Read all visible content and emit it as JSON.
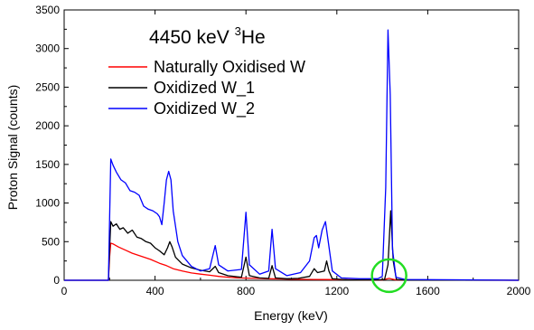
{
  "chart_data": {
    "type": "line",
    "title_main": "4450 keV ",
    "title_sup": "3",
    "title_tail": "He",
    "xlabel": "Energy (keV)",
    "ylabel": "Proton Signal (counts)",
    "xlim": [
      0,
      2000
    ],
    "ylim": [
      0,
      3500
    ],
    "x_ticks": [
      0,
      400,
      800,
      1200,
      1600,
      2000
    ],
    "y_ticks": [
      0,
      500,
      1000,
      1500,
      2000,
      2500,
      3000,
      3500
    ],
    "grid": false,
    "legend_position": "top-left",
    "highlight_circle_center": [
      1430,
      60
    ],
    "series": [
      {
        "name": "Naturally Oxidised W",
        "color": "#ff0000",
        "points": [
          [
            0,
            0
          ],
          [
            195,
            0
          ],
          [
            200,
            300
          ],
          [
            205,
            480
          ],
          [
            215,
            470
          ],
          [
            240,
            430
          ],
          [
            270,
            390
          ],
          [
            300,
            350
          ],
          [
            340,
            310
          ],
          [
            380,
            270
          ],
          [
            420,
            220
          ],
          [
            450,
            190
          ],
          [
            480,
            150
          ],
          [
            520,
            120
          ],
          [
            560,
            95
          ],
          [
            600,
            80
          ],
          [
            640,
            65
          ],
          [
            680,
            50
          ],
          [
            720,
            40
          ],
          [
            760,
            32
          ],
          [
            800,
            28
          ],
          [
            850,
            24
          ],
          [
            900,
            20
          ],
          [
            950,
            17
          ],
          [
            1000,
            14
          ],
          [
            1050,
            12
          ],
          [
            1100,
            10
          ],
          [
            1150,
            9
          ],
          [
            1200,
            8
          ],
          [
            1300,
            6
          ],
          [
            1400,
            5
          ],
          [
            1420,
            18
          ],
          [
            1430,
            25
          ],
          [
            1440,
            18
          ],
          [
            1460,
            5
          ],
          [
            1500,
            3
          ],
          [
            1600,
            2
          ],
          [
            2000,
            0
          ]
        ]
      },
      {
        "name": "Oxidized W_1",
        "color": "#000000",
        "points": [
          [
            0,
            0
          ],
          [
            195,
            0
          ],
          [
            200,
            400
          ],
          [
            205,
            760
          ],
          [
            215,
            700
          ],
          [
            230,
            730
          ],
          [
            245,
            660
          ],
          [
            260,
            680
          ],
          [
            280,
            610
          ],
          [
            300,
            650
          ],
          [
            320,
            560
          ],
          [
            340,
            540
          ],
          [
            360,
            500
          ],
          [
            380,
            480
          ],
          [
            400,
            420
          ],
          [
            420,
            380
          ],
          [
            440,
            330
          ],
          [
            455,
            420
          ],
          [
            465,
            500
          ],
          [
            475,
            430
          ],
          [
            490,
            300
          ],
          [
            520,
            210
          ],
          [
            560,
            160
          ],
          [
            600,
            130
          ],
          [
            640,
            110
          ],
          [
            665,
            180
          ],
          [
            680,
            100
          ],
          [
            720,
            60
          ],
          [
            780,
            40
          ],
          [
            800,
            300
          ],
          [
            815,
            60
          ],
          [
            860,
            30
          ],
          [
            900,
            25
          ],
          [
            915,
            190
          ],
          [
            930,
            30
          ],
          [
            980,
            20
          ],
          [
            1030,
            25
          ],
          [
            1080,
            50
          ],
          [
            1100,
            150
          ],
          [
            1115,
            100
          ],
          [
            1130,
            110
          ],
          [
            1145,
            120
          ],
          [
            1155,
            250
          ],
          [
            1165,
            120
          ],
          [
            1180,
            20
          ],
          [
            1250,
            5
          ],
          [
            1380,
            5
          ],
          [
            1410,
            10
          ],
          [
            1425,
            200
          ],
          [
            1437,
            900
          ],
          [
            1448,
            250
          ],
          [
            1462,
            10
          ],
          [
            1500,
            2
          ],
          [
            2000,
            0
          ]
        ]
      },
      {
        "name": "Oxidized W_2",
        "color": "#0000ff",
        "points": [
          [
            0,
            0
          ],
          [
            195,
            0
          ],
          [
            200,
            800
          ],
          [
            205,
            1570
          ],
          [
            215,
            1490
          ],
          [
            230,
            1400
          ],
          [
            250,
            1300
          ],
          [
            270,
            1260
          ],
          [
            290,
            1160
          ],
          [
            310,
            1140
          ],
          [
            330,
            1100
          ],
          [
            350,
            960
          ],
          [
            370,
            920
          ],
          [
            390,
            900
          ],
          [
            410,
            860
          ],
          [
            420,
            820
          ],
          [
            430,
            720
          ],
          [
            440,
            1000
          ],
          [
            450,
            1300
          ],
          [
            460,
            1410
          ],
          [
            470,
            1300
          ],
          [
            480,
            900
          ],
          [
            500,
            500
          ],
          [
            520,
            320
          ],
          [
            560,
            180
          ],
          [
            600,
            120
          ],
          [
            640,
            150
          ],
          [
            665,
            450
          ],
          [
            680,
            200
          ],
          [
            720,
            120
          ],
          [
            780,
            140
          ],
          [
            800,
            880
          ],
          [
            815,
            200
          ],
          [
            860,
            80
          ],
          [
            900,
            120
          ],
          [
            915,
            660
          ],
          [
            930,
            150
          ],
          [
            980,
            60
          ],
          [
            1040,
            100
          ],
          [
            1080,
            250
          ],
          [
            1100,
            550
          ],
          [
            1110,
            580
          ],
          [
            1120,
            420
          ],
          [
            1135,
            650
          ],
          [
            1150,
            760
          ],
          [
            1160,
            550
          ],
          [
            1180,
            120
          ],
          [
            1220,
            30
          ],
          [
            1300,
            20
          ],
          [
            1380,
            20
          ],
          [
            1400,
            50
          ],
          [
            1415,
            1200
          ],
          [
            1425,
            3240
          ],
          [
            1435,
            2400
          ],
          [
            1445,
            400
          ],
          [
            1460,
            40
          ],
          [
            1500,
            10
          ],
          [
            2000,
            0
          ]
        ]
      }
    ]
  }
}
